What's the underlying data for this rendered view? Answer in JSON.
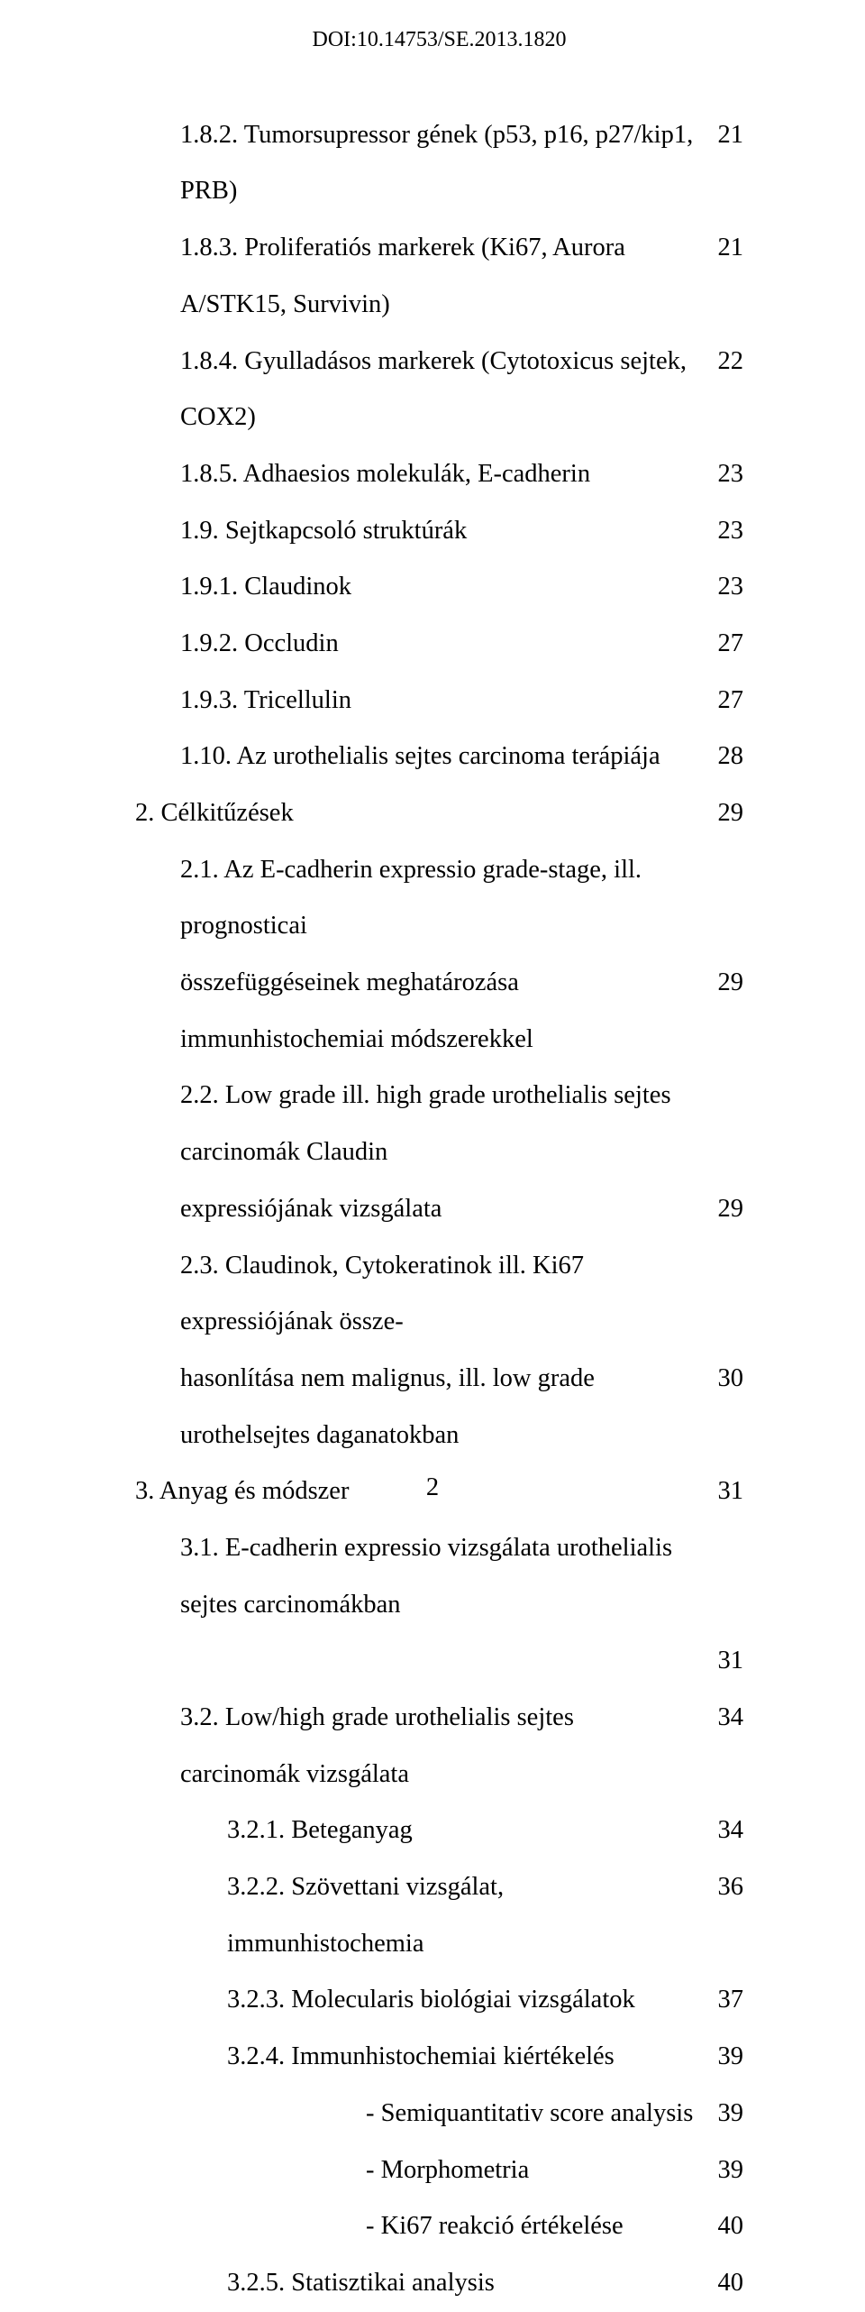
{
  "doi": "DOI:10.14753/SE.2013.1820",
  "toc": [
    {
      "indent": "i1",
      "text": "1.8.2. Tumorsupressor gének  (p53, p16, p27/kip1, PRB)",
      "page": "21"
    },
    {
      "indent": "i1",
      "text": "1.8.3. Proliferatiós markerek (Ki67, Aurora A/STK15, Survivin)",
      "page": "21"
    },
    {
      "indent": "i1",
      "text": "1.8.4. Gyulladásos markerek (Cytotoxicus sejtek, COX2)",
      "page": "22"
    },
    {
      "indent": "i1",
      "text": "1.8.5. Adhaesios molekulák, E-cadherin",
      "page": "23"
    },
    {
      "indent": "i1",
      "text": "1.9. Sejtkapcsoló struktúrák",
      "page": "23"
    },
    {
      "indent": "i1",
      "text": "1.9.1. Claudinok",
      "page": "23"
    },
    {
      "indent": "i1",
      "text": "1.9.2. Occludin",
      "page": "27"
    },
    {
      "indent": "i1",
      "text": "1.9.3. Tricellulin",
      "page": "27"
    },
    {
      "indent": "i1",
      "text": "1.10. Az urothelialis sejtes carcinoma terápiája",
      "page": "28"
    },
    {
      "indent": "",
      "text": "2. Célkitűzések",
      "page": "29"
    },
    {
      "indent": "i1",
      "text": "2.1. Az E-cadherin expressio grade-stage, ill. prognosticai",
      "page": ""
    },
    {
      "indent": "i1",
      "text": "összefüggéseinek meghatározása immunhistochemiai módszerekkel",
      "page": "29"
    },
    {
      "indent": "i1",
      "text": "2.2. Low grade ill. high grade urothelialis sejtes carcinomák  Claudin",
      "page": ""
    },
    {
      "indent": "i1",
      "text": "expressiójának vizsgálata",
      "page": "29"
    },
    {
      "indent": "i1",
      "text": "2.3. Claudinok, Cytokeratinok ill. Ki67 expressiójának össze-",
      "page": ""
    },
    {
      "indent": "i1",
      "text": "hasonlítása nem malignus, ill. low grade urothelsejtes daganatokban",
      "page": "30"
    },
    {
      "indent": "",
      "text": "3. Anyag és módszer",
      "page": "31"
    },
    {
      "indent": "i1",
      "text": "3.1. E-cadherin expressio vizsgálata urothelialis sejtes carcinomákban",
      "page": ""
    },
    {
      "indent": "",
      "text": "",
      "page": "31"
    },
    {
      "indent": "i1",
      "text": "3.2. Low/high grade urothelialis sejtes carcinomák vizsgálata",
      "page": "34"
    },
    {
      "indent": "i2",
      "text": "3.2.1. Beteganyag",
      "page": "34"
    },
    {
      "indent": "i2",
      "text": "3.2.2. Szövettani vizsgálat, immunhistochemia",
      "page": "36"
    },
    {
      "indent": "i2",
      "text": "3.2.3. Molecularis biológiai vizsgálatok",
      "page": "37"
    },
    {
      "indent": "i2",
      "text": "3.2.4. Immunhistochemiai kiértékelés",
      "page": "39"
    },
    {
      "indent": "i3",
      "text": "-    Semiquantitativ score analysis",
      "page": "39"
    },
    {
      "indent": "i3",
      "text": "-    Morphometria",
      "page": "39"
    },
    {
      "indent": "i3",
      "text": "-    Ki67 reakció értékelése",
      "page": "40"
    },
    {
      "indent": "i2",
      "text": "3.2.5. Statisztikai analysis",
      "page": "40"
    }
  ],
  "footer_page": "2"
}
